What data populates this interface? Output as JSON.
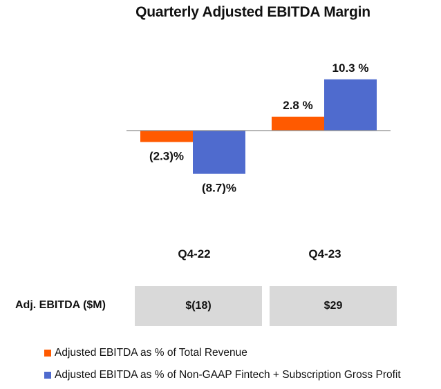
{
  "title": "Quarterly Adjusted EBITDA Margin",
  "chart_data": {
    "type": "bar",
    "title": "Quarterly Adjusted EBITDA Margin",
    "categories": [
      "Q4-22",
      "Q4-23"
    ],
    "series": [
      {
        "name": "Adjusted EBITDA as % of Total Revenue",
        "color": "#ff5a00",
        "values": [
          -2.3,
          2.8
        ],
        "labels": [
          "(2.3)%",
          "2.8 %"
        ]
      },
      {
        "name": "Adjusted EBITDA as % of Non-GAAP Fintech + Subscription Gross Profit",
        "color": "#4f6bce",
        "values": [
          -8.7,
          10.3
        ],
        "labels": [
          "(8.7)%",
          "10.3 %"
        ]
      }
    ],
    "xlabel": "",
    "ylabel": "",
    "grid": false,
    "legend": "bottom-left"
  },
  "table": {
    "row_label": "Adj. EBITDA ($M)",
    "values": [
      "$(18)",
      "$29"
    ]
  }
}
